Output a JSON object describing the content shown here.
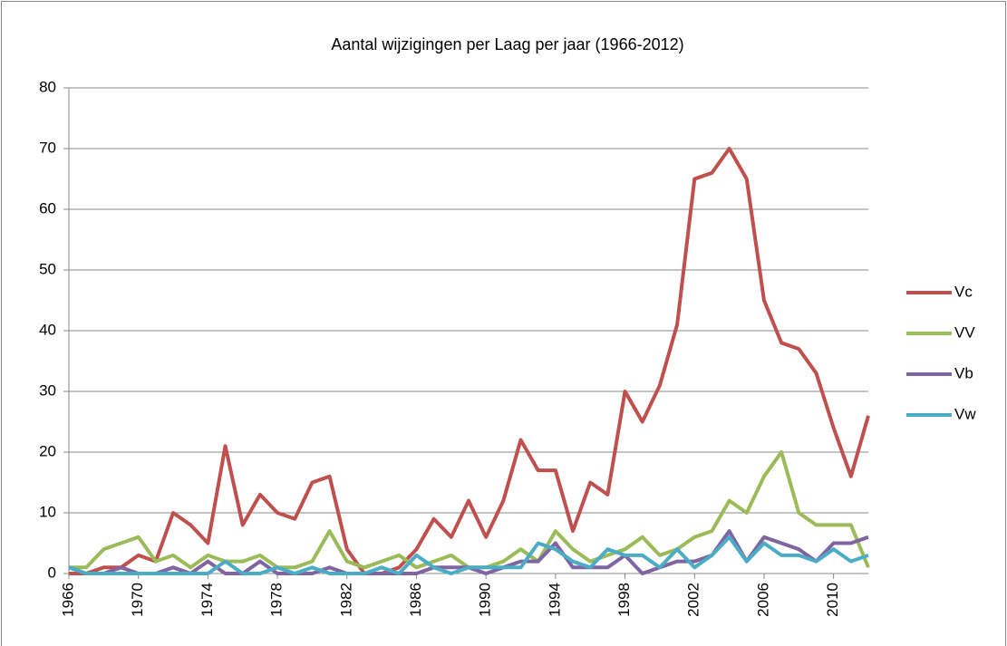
{
  "chart_data": {
    "type": "line",
    "title": "Aantal wijzigingen per Laag per jaar (1966-2012)",
    "x": [
      1966,
      1967,
      1968,
      1969,
      1970,
      1971,
      1972,
      1973,
      1974,
      1975,
      1976,
      1977,
      1978,
      1979,
      1980,
      1981,
      1982,
      1983,
      1984,
      1985,
      1986,
      1987,
      1988,
      1989,
      1990,
      1991,
      1992,
      1993,
      1994,
      1995,
      1996,
      1997,
      1998,
      1999,
      2000,
      2001,
      2002,
      2003,
      2004,
      2005,
      2006,
      2007,
      2008,
      2009,
      2010,
      2011,
      2012
    ],
    "xlim": [
      1966,
      2012
    ],
    "xticks": [
      1966,
      1970,
      1974,
      1978,
      1982,
      1986,
      1990,
      1994,
      1998,
      2002,
      2006,
      2010
    ],
    "ylim": [
      0,
      80
    ],
    "yticks": [
      0,
      10,
      20,
      30,
      40,
      50,
      60,
      70,
      80
    ],
    "grid": true,
    "legend": "right",
    "series": [
      {
        "name": "Vc",
        "color": "#c0504d",
        "values": [
          0,
          0,
          1,
          1,
          3,
          2,
          10,
          8,
          5,
          21,
          8,
          13,
          10,
          9,
          15,
          16,
          4,
          0,
          0,
          1,
          4,
          9,
          6,
          12,
          6,
          12,
          22,
          17,
          17,
          7,
          15,
          13,
          30,
          25,
          31,
          41,
          65,
          66,
          70,
          65,
          45,
          38,
          37,
          33,
          24,
          16,
          26
        ]
      },
      {
        "name": "VV",
        "color": "#9bbb59",
        "values": [
          1,
          1,
          4,
          5,
          6,
          2,
          3,
          1,
          3,
          2,
          2,
          3,
          1,
          1,
          2,
          7,
          2,
          1,
          2,
          3,
          1,
          2,
          3,
          1,
          1,
          2,
          4,
          2,
          7,
          4,
          2,
          3,
          4,
          6,
          3,
          4,
          6,
          7,
          12,
          10,
          16,
          20,
          10,
          8,
          8,
          8,
          1
        ]
      },
      {
        "name": "Vb",
        "color": "#8064a2",
        "values": [
          1,
          0,
          0,
          1,
          0,
          0,
          1,
          0,
          2,
          0,
          0,
          2,
          0,
          0,
          0,
          1,
          0,
          0,
          0,
          0,
          0,
          1,
          1,
          1,
          0,
          1,
          2,
          2,
          5,
          1,
          1,
          1,
          3,
          0,
          1,
          2,
          2,
          3,
          7,
          2,
          6,
          5,
          4,
          2,
          5,
          5,
          6
        ]
      },
      {
        "name": "Vw",
        "color": "#4bacc6",
        "values": [
          1,
          0,
          0,
          0,
          0,
          0,
          0,
          0,
          0,
          2,
          0,
          0,
          1,
          0,
          1,
          0,
          0,
          0,
          1,
          0,
          3,
          1,
          0,
          1,
          1,
          1,
          1,
          5,
          4,
          2,
          1,
          4,
          3,
          3,
          1,
          4,
          1,
          3,
          6,
          2,
          5,
          3,
          3,
          2,
          4,
          2,
          3
        ]
      }
    ]
  }
}
